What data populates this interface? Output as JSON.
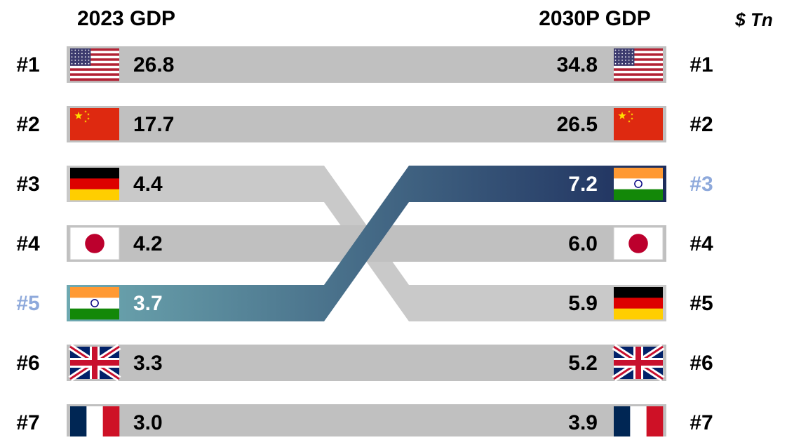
{
  "chart_data": {
    "type": "rank",
    "left_title": "2023 GDP",
    "right_title": "2030P GDP",
    "unit": "$ Tn",
    "ranks": [
      "#1",
      "#2",
      "#3",
      "#4",
      "#5",
      "#6",
      "#7"
    ],
    "left": {
      "values": [
        26.8,
        17.7,
        4.4,
        4.2,
        3.7,
        3.3,
        3.0
      ],
      "value_labels": [
        "26.8",
        "17.7",
        "4.4",
        "4.2",
        "3.7",
        "3.3",
        "3.0"
      ],
      "flags": [
        "us",
        "cn",
        "de",
        "jp",
        "in",
        "gb",
        "fr"
      ]
    },
    "right": {
      "values": [
        34.8,
        26.5,
        7.2,
        6.0,
        5.9,
        5.2,
        3.9
      ],
      "value_labels": [
        "34.8",
        "26.5",
        "7.2",
        "6.0",
        "5.9",
        "5.2",
        "3.9"
      ],
      "flags": [
        "us",
        "cn",
        "in",
        "jp",
        "de",
        "gb",
        "fr"
      ]
    },
    "bar_color": "#c0c0c0",
    "highlight_flag": "in",
    "highlight_colors": [
      "#6ea9b1",
      "#1c2c5c"
    ],
    "highlight_rank_color": "#8ea9db"
  }
}
